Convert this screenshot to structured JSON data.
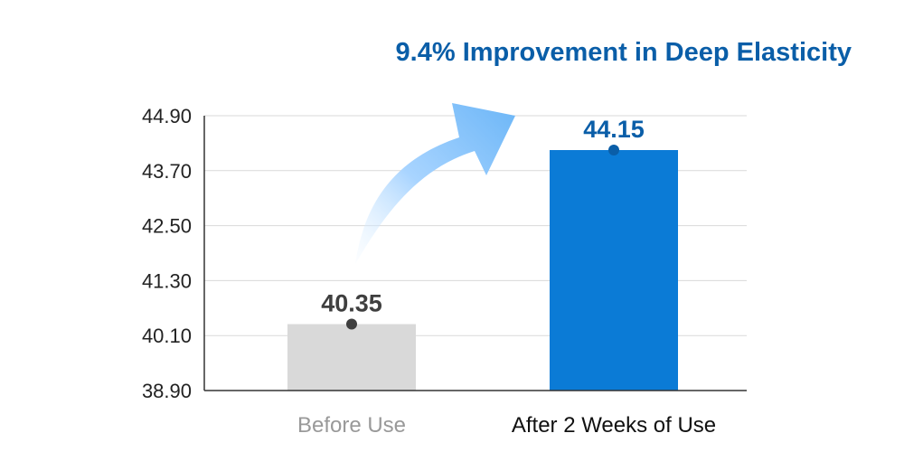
{
  "chart_data": {
    "type": "bar",
    "title": "9.4% Improvement in Deep Elasticity",
    "categories": [
      "Before Use",
      "After 2 Weeks of Use"
    ],
    "values": [
      40.35,
      44.15
    ],
    "value_labels": [
      "40.35",
      "44.15"
    ],
    "yticks": [
      "38.90",
      "40.10",
      "41.30",
      "42.50",
      "43.70",
      "44.90"
    ],
    "ylim": [
      38.9,
      44.9
    ],
    "grid": true,
    "xlabel": "",
    "ylabel": ""
  },
  "colors": {
    "title": "#0a5ea8",
    "bar_before": "#d9d9d9",
    "bar_after": "#0b7bd6",
    "label_before": "#3f3f3f",
    "label_after": "#0a5ea8",
    "category_before": "#999999",
    "category_after": "#111111",
    "axis": "#333333",
    "grid": "#d9d9d9",
    "arrow_light": "#e8f4ff",
    "arrow_mid": "#a8d4ff",
    "arrow_dark": "#6cb6f7"
  }
}
